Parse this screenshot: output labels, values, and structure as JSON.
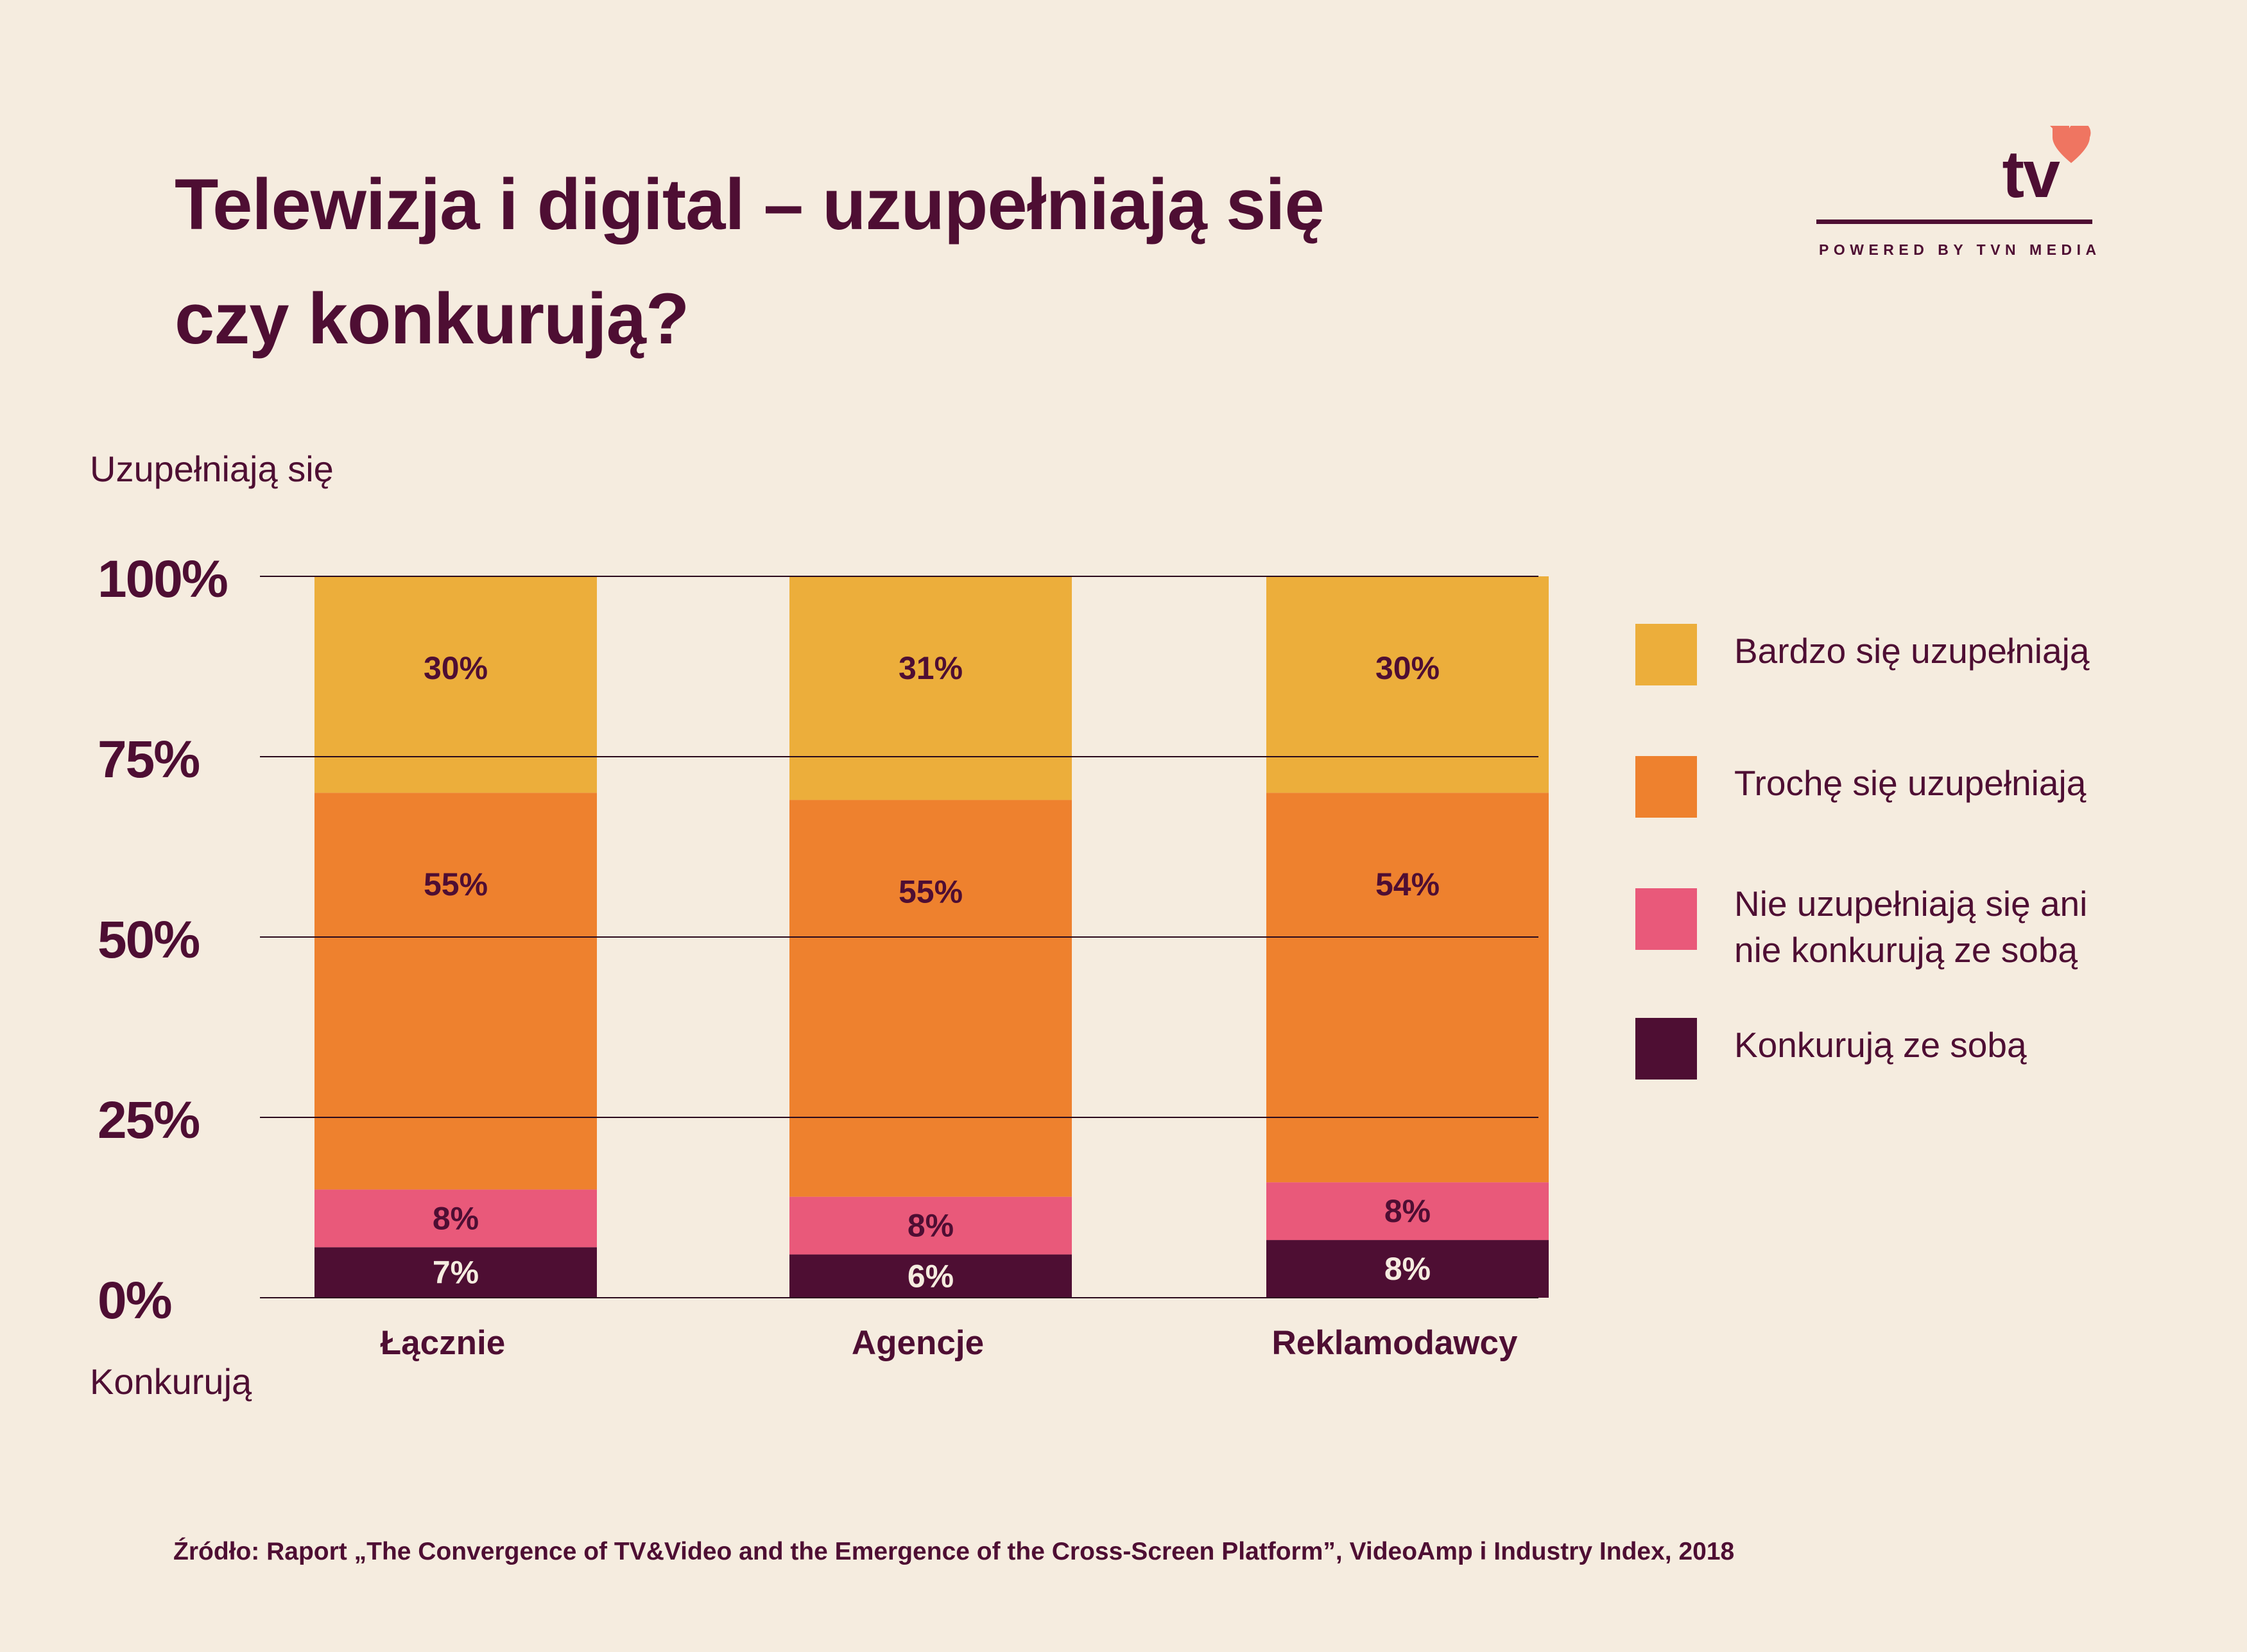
{
  "title": {
    "line1": "Telewizja i digital – uzupełniają się",
    "line2": "czy konkurują?"
  },
  "logo": {
    "mark": "tv",
    "tagline": "POWERED BY TVN MEDIA",
    "accent_color": "#ef7561",
    "line_color": "#4e0e33"
  },
  "axis_top_label": "Uzupełniają się",
  "axis_bottom_label": "Konkurują",
  "source": "Źródło: Raport „The Convergence of TV&Video and the Emergence of the Cross-Screen Platform”, VideoAmp i Industry Index, 2018",
  "chart_data": {
    "type": "bar",
    "stacked": true,
    "categories": [
      "Łącznie",
      "Agencje",
      "Reklamodawcy"
    ],
    "y_ticks": [
      "0%",
      "25%",
      "50%",
      "75%",
      "100%"
    ],
    "ylim": [
      0,
      100
    ],
    "grid": true,
    "legend_position": "right",
    "series": [
      {
        "name": "Konkurują ze sobą",
        "color": "#4e0e33",
        "label_color": "#f5ecdf",
        "values": [
          7,
          6,
          8
        ],
        "labels": [
          "7%",
          "6%",
          "8%"
        ]
      },
      {
        "name": "Nie uzupełniają się ani nie konkurują ze sobą",
        "color": "#e9597a",
        "label_color": "#4e0e33",
        "values": [
          8,
          8,
          8
        ],
        "labels": [
          "8%",
          "8%",
          "8%"
        ]
      },
      {
        "name": "Trochę się uzupełniają",
        "color": "#ee812e",
        "label_color": "#4e0e33",
        "values": [
          55,
          55,
          54
        ],
        "labels": [
          "55%",
          "55%",
          "54%"
        ]
      },
      {
        "name": "Bardzo się uzupełniają",
        "color": "#ecae3b",
        "label_color": "#4e0e33",
        "values": [
          30,
          31,
          30
        ],
        "labels": [
          "30%",
          "31%",
          "30%"
        ]
      }
    ],
    "legend": [
      {
        "lines": [
          "Bardzo się uzupełniają"
        ],
        "color": "#ecae3b"
      },
      {
        "lines": [
          "Trochę się uzupełniają"
        ],
        "color": "#ee812e"
      },
      {
        "lines": [
          "Nie uzupełniają się ani",
          "nie konkurują ze sobą"
        ],
        "color": "#e9597a"
      },
      {
        "lines": [
          "Konkurują ze sobą"
        ],
        "color": "#4e0e33"
      }
    ]
  }
}
